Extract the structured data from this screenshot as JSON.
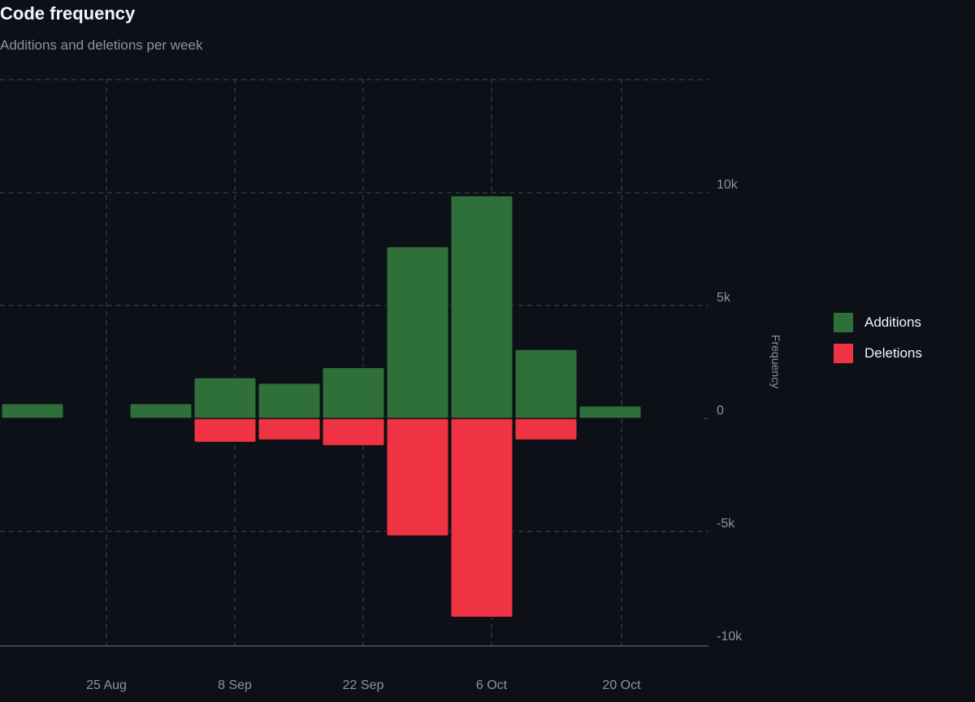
{
  "header": {
    "title": "Code frequency",
    "subtitle": "Additions and deletions per week"
  },
  "colors": {
    "additions": "#2f6f3a",
    "deletions": "#ef3342",
    "grid": "#3b4048",
    "text": "#8b949e"
  },
  "chart_data": {
    "type": "bar",
    "title": "Code frequency",
    "subtitle": "Additions and deletions per week",
    "xlabel": "",
    "ylabel": "Frequency",
    "x_tick_labels": [
      "25 Aug",
      "8 Sep",
      "22 Sep",
      "6 Oct",
      "20 Oct"
    ],
    "y_tick_labels": [
      "10k",
      "5k",
      "0",
      "-5k",
      "-10k"
    ],
    "ylim": [
      -10000,
      15000
    ],
    "grid": true,
    "legend_position": "right",
    "stacked_diverging": true,
    "series": [
      {
        "name": "Additions",
        "values": [
          650,
          0,
          650,
          1800,
          1550,
          2250,
          7600,
          9850,
          3050,
          550
        ]
      },
      {
        "name": "Deletions",
        "values": [
          0,
          0,
          0,
          -1050,
          -950,
          -1200,
          -5200,
          -8800,
          -950,
          0
        ]
      }
    ]
  },
  "legend": {
    "items": [
      {
        "label": "Additions"
      },
      {
        "label": "Deletions"
      }
    ]
  }
}
